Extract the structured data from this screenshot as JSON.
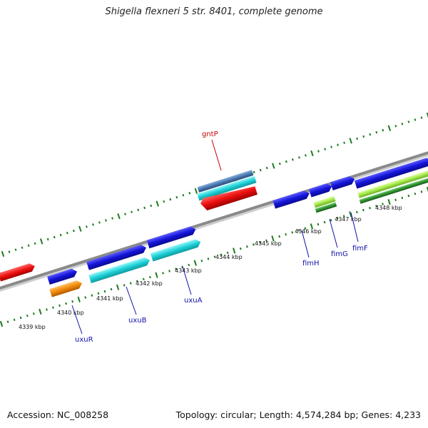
{
  "title": "Shigella flexneri 5 str. 8401, complete genome",
  "footer": {
    "accession": "Accession: NC_008258",
    "topology": "Topology: circular; Length: 4,574,284 bp; Genes: 4,233"
  },
  "ticks": [
    "4339 kbp",
    "4340 kbp",
    "4341 kbp",
    "4342 kbp",
    "4343 kbp",
    "4344 kbp",
    "4345 kbp",
    "4346 kbp",
    "4347 kbp",
    "4348 kbp"
  ],
  "genes": {
    "gntP": "gntP",
    "uxuR": "uxuR",
    "uxuB": "uxuB",
    "uxuA": "uxuA",
    "fimH": "fimH",
    "fimG": "fimG",
    "fimF": "fimF"
  },
  "colors": {
    "backbone": "#8a8a8a",
    "tick": "#1e7a1e",
    "forward": "#1515d6",
    "reverse": "#ee1111",
    "cyan": "#1fd0d6",
    "orange": "#f08a0a",
    "lightgreen": "#a4e84a",
    "darkgreen": "#2f8f2f",
    "steel": "#4a7ab0",
    "label_red": "#cc0000",
    "label_blue": "#1010aa"
  }
}
